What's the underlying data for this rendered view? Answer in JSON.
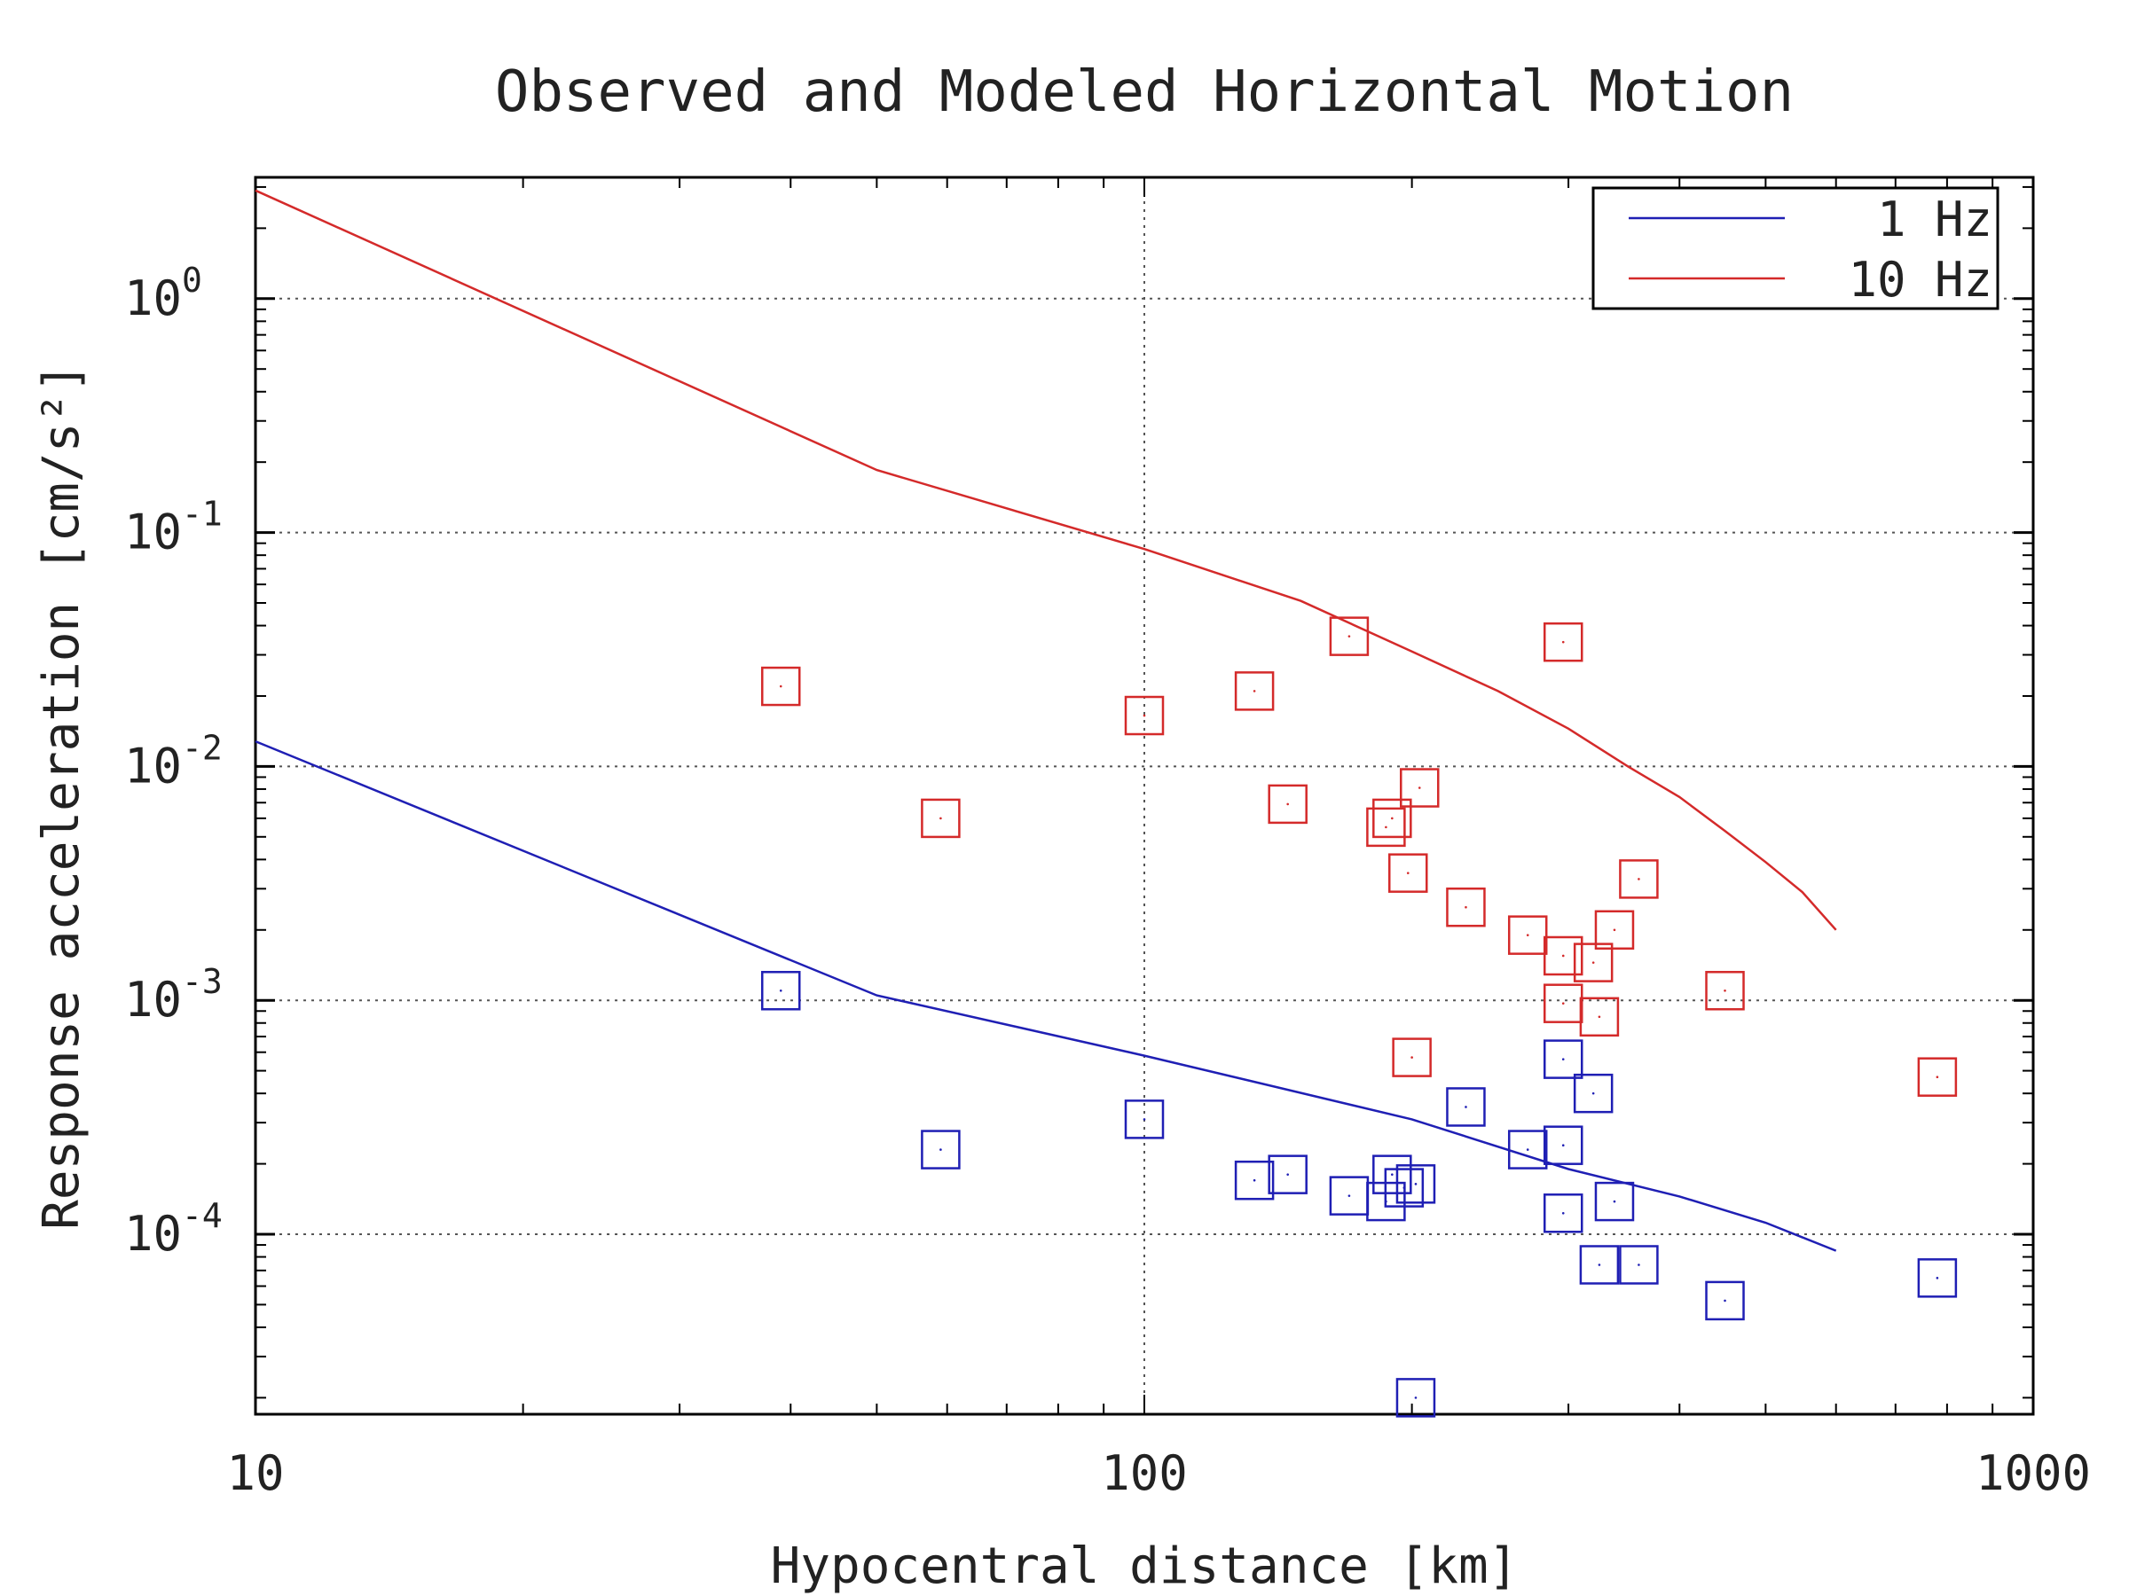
{
  "chart_data": {
    "type": "scatter",
    "title": "Observed and Modeled Horizontal Motion",
    "xlabel": "Hypocentral distance [km]",
    "ylabel": "Response acceleration [cm/s²]",
    "xscale": "log",
    "yscale": "log",
    "xlim": [
      10,
      1000
    ],
    "ylim": [
      1.7e-05,
      3.3
    ],
    "x_ticks": [
      {
        "value": 10,
        "label": "10"
      },
      {
        "value": 100,
        "label": "100"
      },
      {
        "value": 1000,
        "label": "1000"
      }
    ],
    "y_ticks": [
      {
        "value": 1,
        "mantissa": "10",
        "exponent": "0"
      },
      {
        "value": 0.1,
        "mantissa": "10",
        "exponent": "-1"
      },
      {
        "value": 0.01,
        "mantissa": "10",
        "exponent": "-2"
      },
      {
        "value": 0.001,
        "mantissa": "10",
        "exponent": "-3"
      },
      {
        "value": 0.0001,
        "mantissa": "10",
        "exponent": "-4"
      }
    ],
    "grid": "dotted at major ticks",
    "legend_position": "top-right",
    "series": [
      {
        "name": "1 Hz",
        "kind": "model-line",
        "color": "#1f1fb4",
        "points": [
          [
            10,
            0.0128
          ],
          [
            50,
            0.00105
          ],
          [
            100,
            0.00058
          ],
          [
            200,
            0.00031
          ],
          [
            300,
            0.00019
          ],
          [
            400,
            0.000145
          ],
          [
            500,
            0.000112
          ],
          [
            600,
            8.5e-05
          ]
        ]
      },
      {
        "name": "10 Hz",
        "kind": "model-line",
        "color": "#d42a2a",
        "points": [
          [
            10,
            2.9
          ],
          [
            50,
            0.185
          ],
          [
            100,
            0.085
          ],
          [
            150,
            0.051
          ],
          [
            200,
            0.031
          ],
          [
            250,
            0.021
          ],
          [
            300,
            0.0145
          ],
          [
            350,
            0.01
          ],
          [
            400,
            0.0074
          ],
          [
            450,
            0.0053
          ],
          [
            500,
            0.0039
          ],
          [
            550,
            0.0029
          ],
          [
            600,
            0.002
          ]
        ]
      },
      {
        "name": "1 Hz observed",
        "kind": "observed",
        "color": "#1f1fb4",
        "points": [
          [
            39,
            0.0011
          ],
          [
            59,
            0.00023
          ],
          [
            100,
            0.00031
          ],
          [
            133,
            0.00017
          ],
          [
            145,
            0.00018
          ],
          [
            170,
            0.000146
          ],
          [
            187,
            0.000138
          ],
          [
            190,
            0.00018
          ],
          [
            196,
            0.000158
          ],
          [
            202,
            0.000164
          ],
          [
            202,
            2e-05
          ],
          [
            230,
            0.00035
          ],
          [
            270,
            0.00023
          ],
          [
            296,
            0.00024
          ],
          [
            296,
            0.00056
          ],
          [
            296,
            0.000123
          ],
          [
            320,
            0.0004
          ],
          [
            325,
            7.4e-05
          ],
          [
            338,
            0.000138
          ],
          [
            360,
            7.4e-05
          ],
          [
            450,
            5.2e-05
          ],
          [
            780,
            6.5e-05
          ]
        ]
      },
      {
        "name": "10 Hz observed",
        "kind": "observed",
        "color": "#d42a2a",
        "points": [
          [
            39,
            0.022
          ],
          [
            59,
            0.006
          ],
          [
            100,
            0.0165
          ],
          [
            133,
            0.021
          ],
          [
            145,
            0.0069
          ],
          [
            170,
            0.036
          ],
          [
            187,
            0.0055
          ],
          [
            190,
            0.006
          ],
          [
            198,
            0.0035
          ],
          [
            204,
            0.0081
          ],
          [
            200,
            0.00057
          ],
          [
            230,
            0.0025
          ],
          [
            270,
            0.0019
          ],
          [
            296,
            0.034
          ],
          [
            296,
            0.00155
          ],
          [
            296,
            0.00097
          ],
          [
            320,
            0.00145
          ],
          [
            325,
            0.00085
          ],
          [
            338,
            0.002
          ],
          [
            360,
            0.0033
          ],
          [
            450,
            0.0011
          ],
          [
            780,
            0.00047
          ]
        ]
      }
    ],
    "legend": [
      {
        "label": "1 Hz",
        "color": "#1f1fb4"
      },
      {
        "label": "10 Hz",
        "color": "#d42a2a"
      }
    ]
  }
}
